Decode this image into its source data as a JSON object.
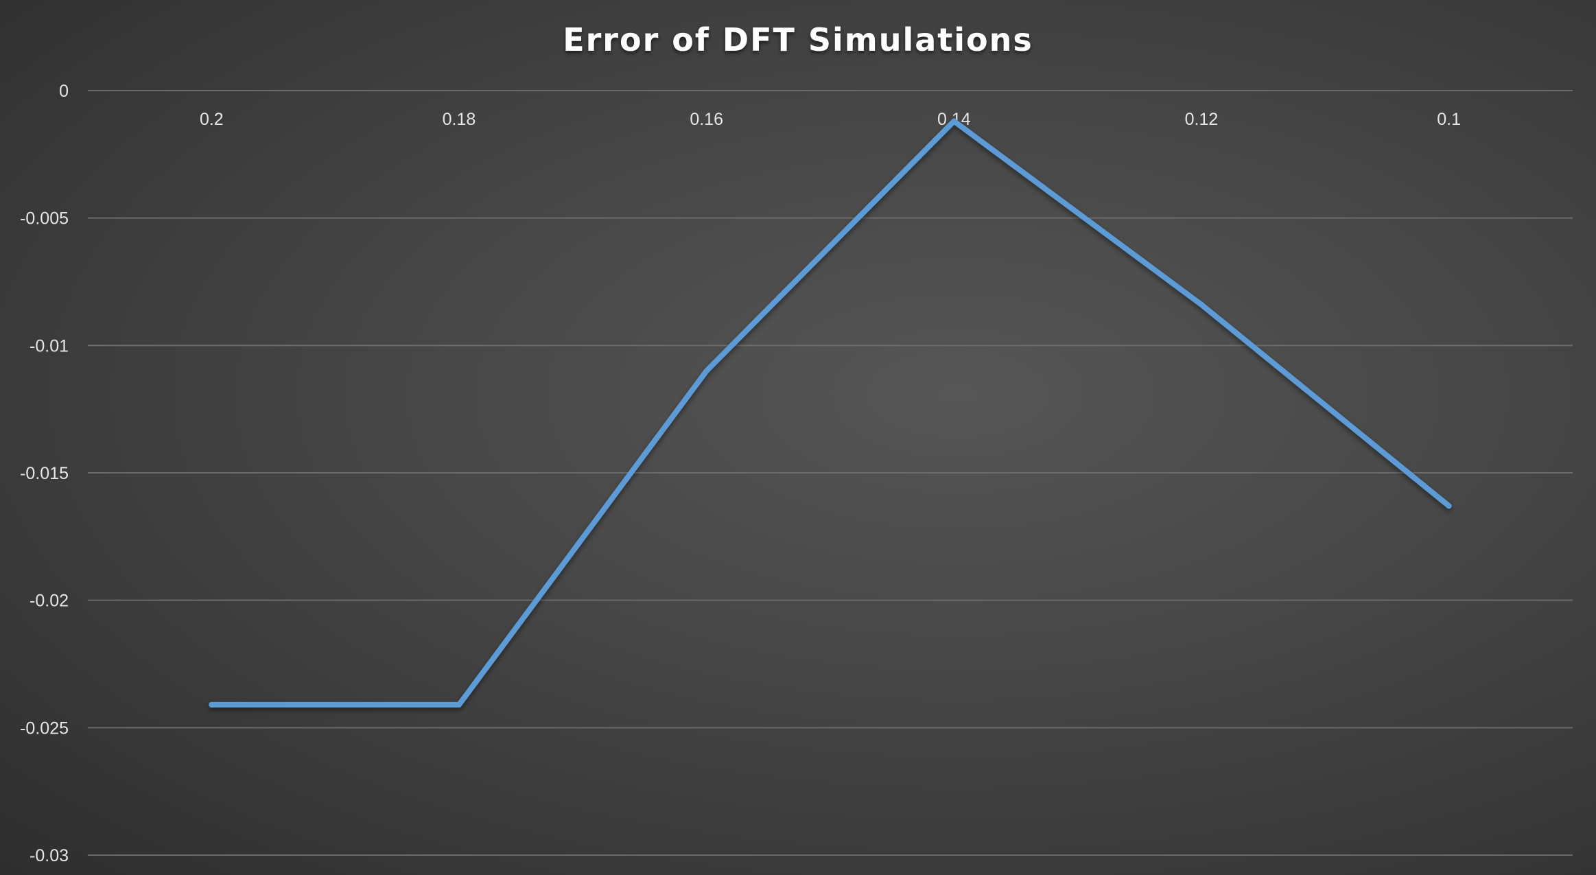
{
  "chart_data": {
    "type": "line",
    "title": "Error of DFT Simulations",
    "xlabel": "",
    "ylabel": "",
    "categories": [
      "0.2",
      "0.18",
      "0.16",
      "0.14",
      "0.12",
      "0.1"
    ],
    "series": [
      {
        "values": [
          -0.0241,
          -0.0241,
          -0.011,
          -0.0012,
          -0.0084,
          -0.0163
        ]
      }
    ],
    "ylim": [
      -0.03,
      0
    ],
    "yticks": [
      "0",
      "-0.005",
      "-0.01",
      "-0.015",
      "-0.02",
      "-0.025",
      "-0.03"
    ],
    "ytick_values": [
      0,
      -0.005,
      -0.01,
      -0.015,
      -0.02,
      -0.025,
      -0.03
    ],
    "grid": true,
    "legend": "none",
    "x_axis_position": "top",
    "colors": {
      "series": "#5b9bd5",
      "grid": "#6a6a6a",
      "text": "#e6e6e6",
      "title": "#ffffff"
    }
  }
}
